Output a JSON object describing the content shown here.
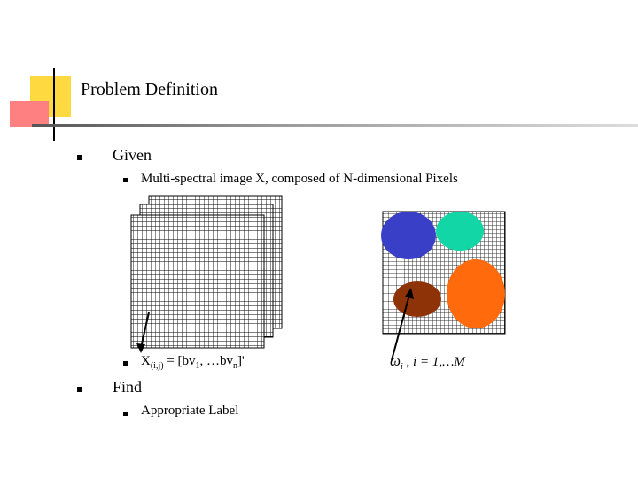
{
  "slide": {
    "title": "Problem Definition",
    "given_label": "Given",
    "given_item_label": "Multi-spectral image X, composed of N-dimensional Pixels",
    "pixel_expr": {
      "x": "X",
      "x_sub": "(i,j)",
      "eq_open": " = [bv",
      "bv1_sub": "1",
      "mid": ", …bv",
      "bvn_sub": "n",
      "close": "]'"
    },
    "class_expr": {
      "omega": "ω",
      "i_sub": "i",
      "rest": " , i = 1,…M"
    },
    "find_label": "Find",
    "find_item_label": "Appropriate Label"
  },
  "colors": {
    "blue_region": "#3a3fc8",
    "teal_region": "#12d6a5",
    "brown_region": "#8e3308",
    "orange_region": "#ff6a0d",
    "grid_lines": "#000000",
    "accent_yellow": "#ffd940",
    "accent_red": "#ff8080"
  }
}
